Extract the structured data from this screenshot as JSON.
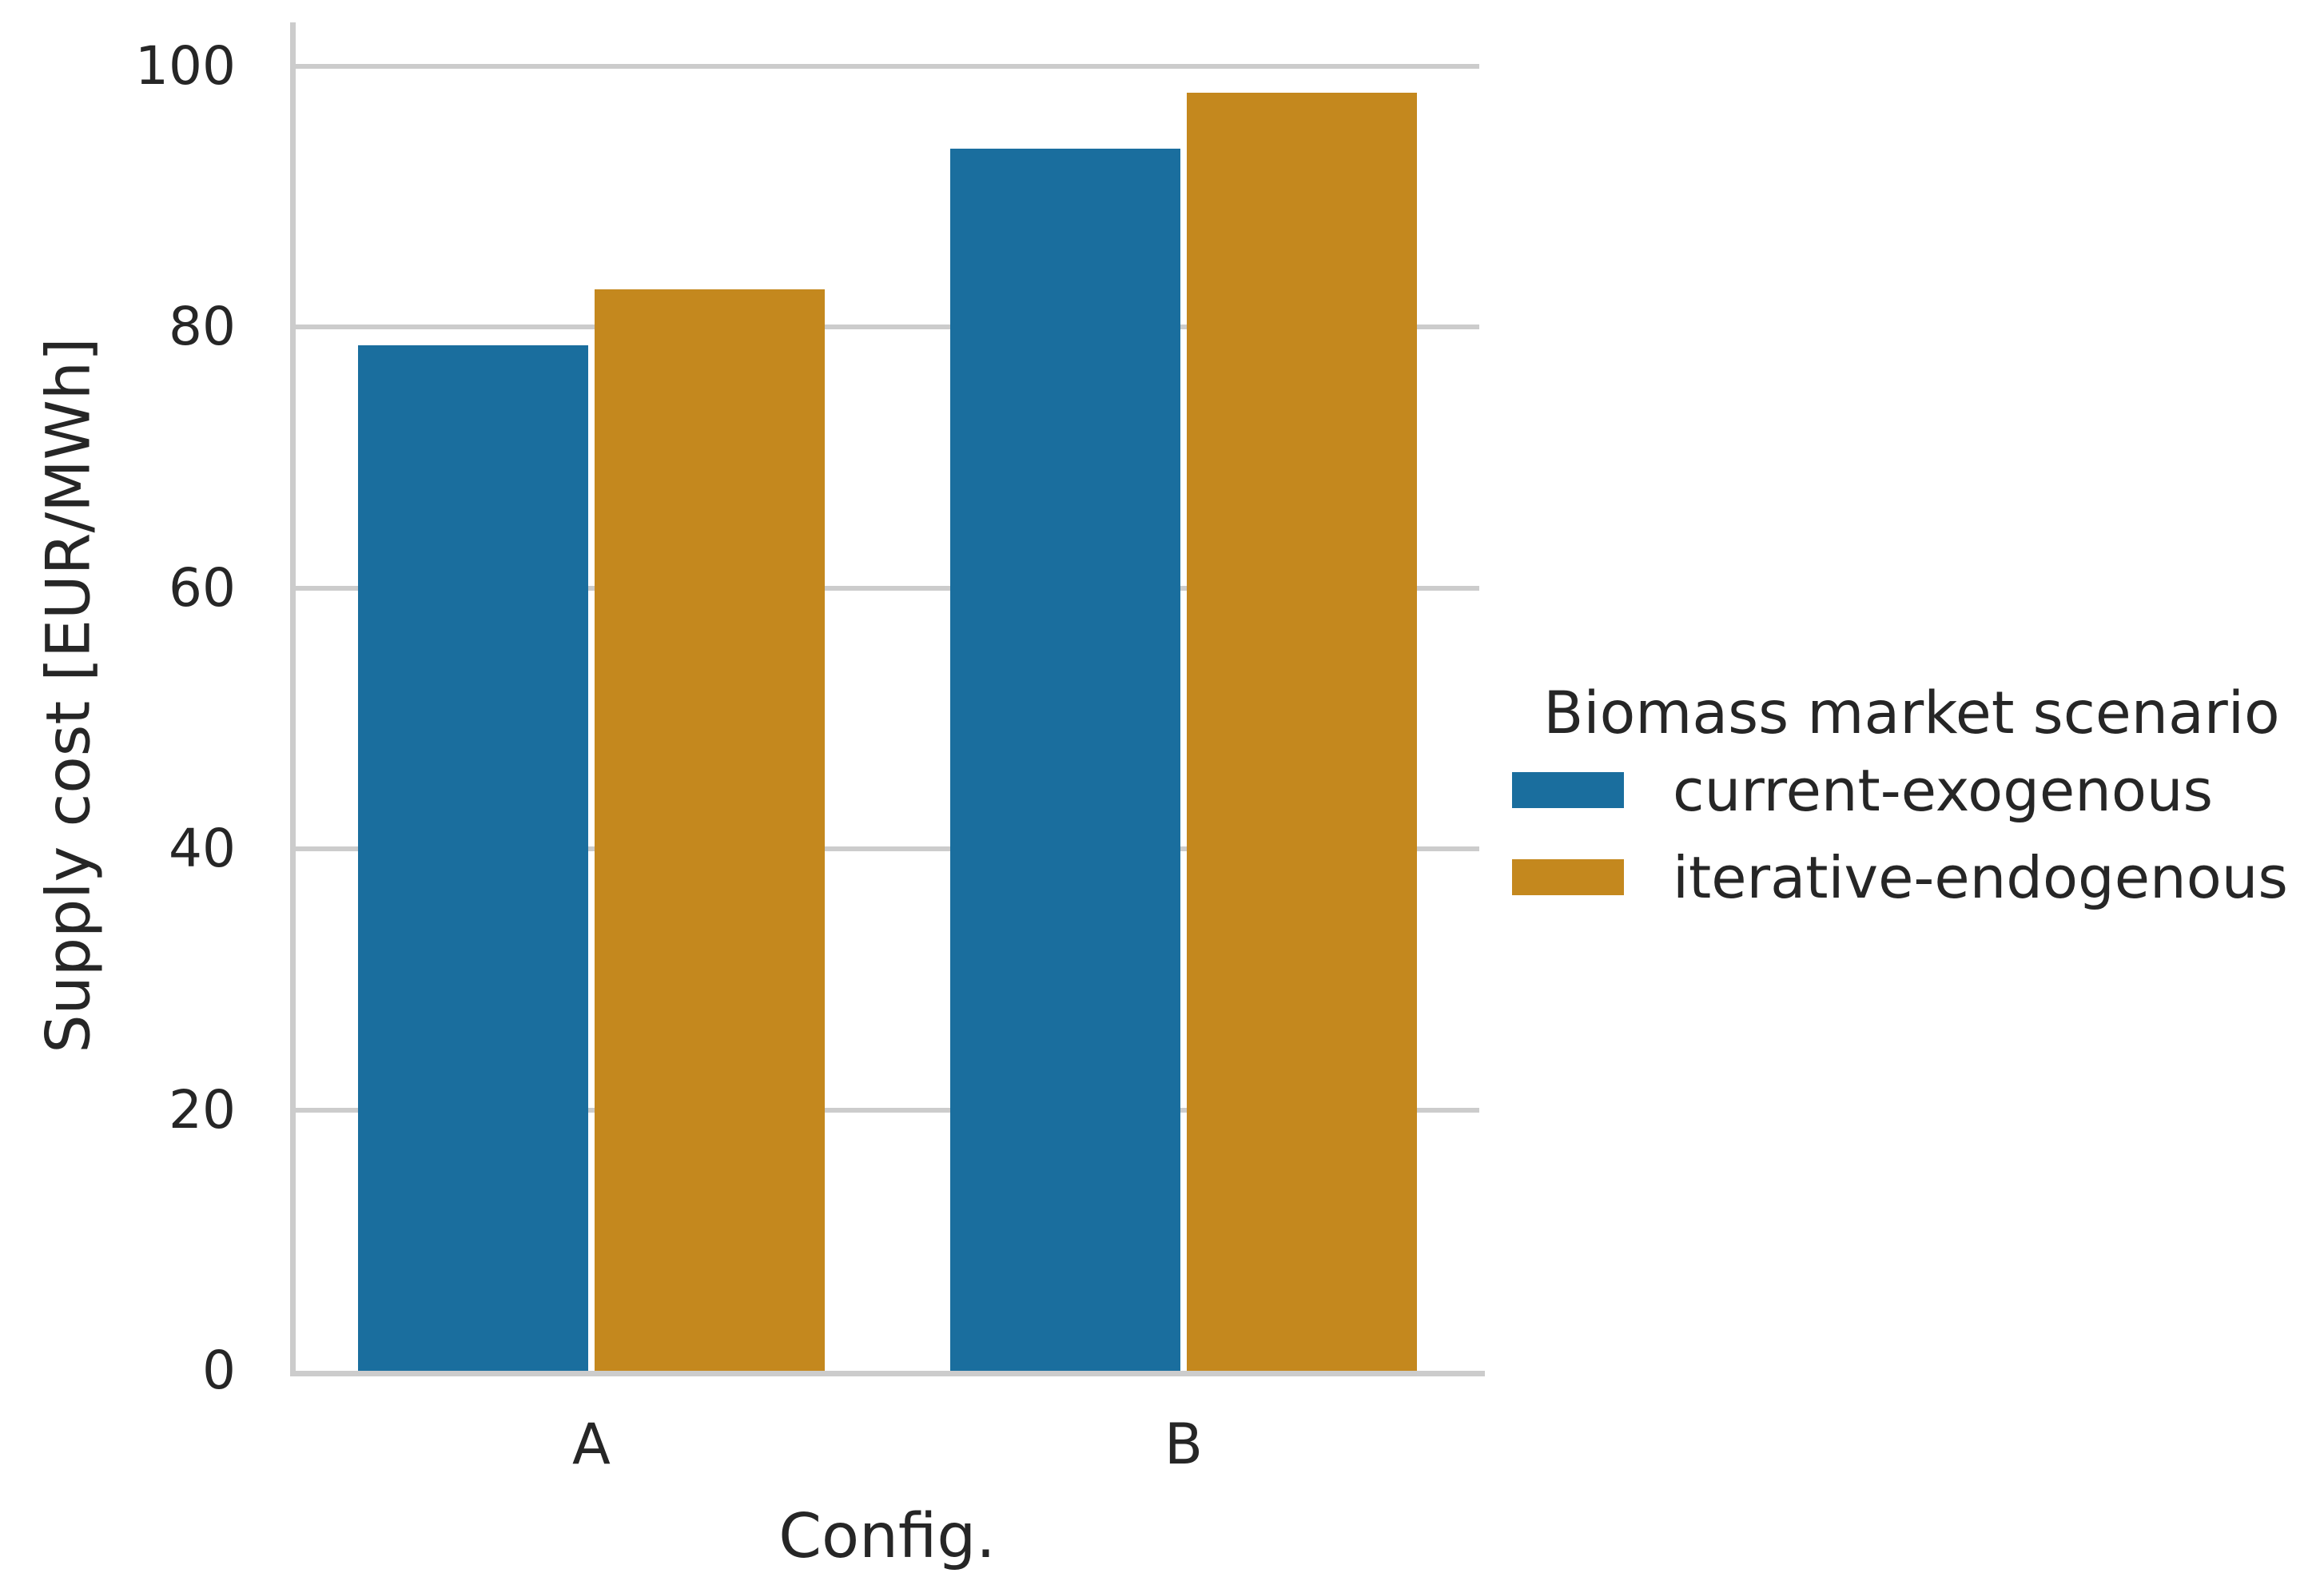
{
  "figure": {
    "background": "#ffffff",
    "text_color": "#262626",
    "grid_color": "#cccccc"
  },
  "chart_data": {
    "type": "bar",
    "categories": [
      "A",
      "B"
    ],
    "series": [
      {
        "name": "current-exogenous",
        "color": "#1a6e9e",
        "values": [
          78.6,
          93.7
        ]
      },
      {
        "name": "iterative-endogenous",
        "color": "#c4881e",
        "values": [
          82.9,
          98.0
        ]
      }
    ],
    "title": "",
    "xlabel": "Config.",
    "ylabel": "Supply cost [EUR/MWh]",
    "yticks": [
      0,
      20,
      40,
      60,
      80,
      100
    ],
    "ylim": [
      0,
      103.4
    ],
    "grid": true,
    "legend_title": "Biomass market scenario",
    "legend_position": "right"
  }
}
